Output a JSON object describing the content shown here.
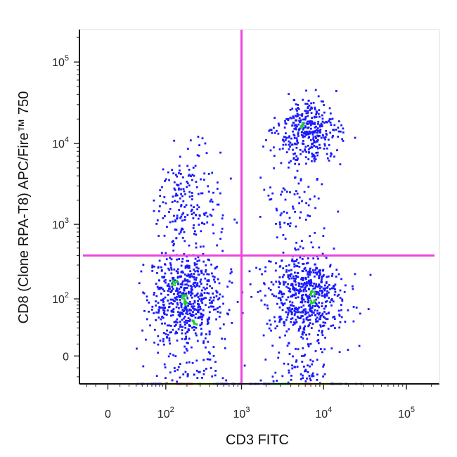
{
  "chart_data": {
    "type": "scatter",
    "title": "",
    "xlabel": "CD3 FITC",
    "ylabel": "CD8 (Clone RPA-T8) APC/Fire™ 750",
    "x_scale": "biexponential",
    "y_scale": "biexponential",
    "xlim": [
      -30,
      250000
    ],
    "ylim": [
      -30,
      250000
    ],
    "x_ticks": [
      {
        "value": 0,
        "base": "0",
        "exp": ""
      },
      {
        "value": 100,
        "base": "10",
        "exp": "2"
      },
      {
        "value": 1000,
        "base": "10",
        "exp": "3"
      },
      {
        "value": 10000,
        "base": "10",
        "exp": "4"
      },
      {
        "value": 100000,
        "base": "10",
        "exp": "5"
      }
    ],
    "y_ticks": [
      {
        "value": 0,
        "base": "0",
        "exp": ""
      },
      {
        "value": 100,
        "base": "10",
        "exp": "2"
      },
      {
        "value": 1000,
        "base": "10",
        "exp": "3"
      },
      {
        "value": 10000,
        "base": "10",
        "exp": "4"
      },
      {
        "value": 100000,
        "base": "10",
        "exp": "5"
      }
    ],
    "quadrant_gate": {
      "x": 1000,
      "y": 400,
      "color": "#ee44dd"
    },
    "density_colors": [
      "#1a1aff",
      "#22cc33",
      "#eeee22",
      "#ff2222"
    ],
    "populations": [
      {
        "x_center": 200,
        "x_spread": 0.28,
        "y_center": 10,
        "y_spread": 150,
        "count": 620
      },
      {
        "x_center": 200,
        "x_spread": 0.25,
        "y_center": 100,
        "y_spread": 0.35,
        "count": 330
      },
      {
        "x_center": 200,
        "x_spread": 0.22,
        "y_center": 1800,
        "y_spread": 0.35,
        "count": 200
      },
      {
        "x_center": 6000,
        "x_spread": 0.25,
        "y_center": 10,
        "y_spread": 150,
        "count": 640
      },
      {
        "x_center": 6000,
        "x_spread": 0.22,
        "y_center": 100,
        "y_spread": 0.33,
        "count": 280
      },
      {
        "x_center": 6500,
        "x_spread": 0.18,
        "y_center": 14000,
        "y_spread": 0.18,
        "count": 360
      },
      {
        "x_center": 4500,
        "x_spread": 0.2,
        "y_center": 2000,
        "y_spread": 0.4,
        "count": 90
      }
    ]
  }
}
